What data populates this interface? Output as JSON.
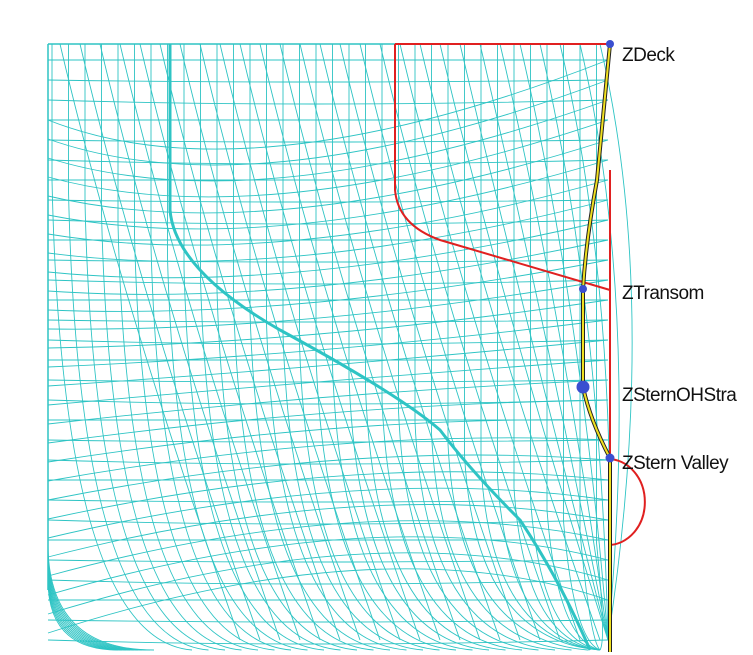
{
  "nodes": [
    {
      "label": "ZDeck"
    },
    {
      "label": "ZTransom"
    },
    {
      "label": "ZSternOHStra"
    },
    {
      "label": "ZStern Valley"
    }
  ]
}
